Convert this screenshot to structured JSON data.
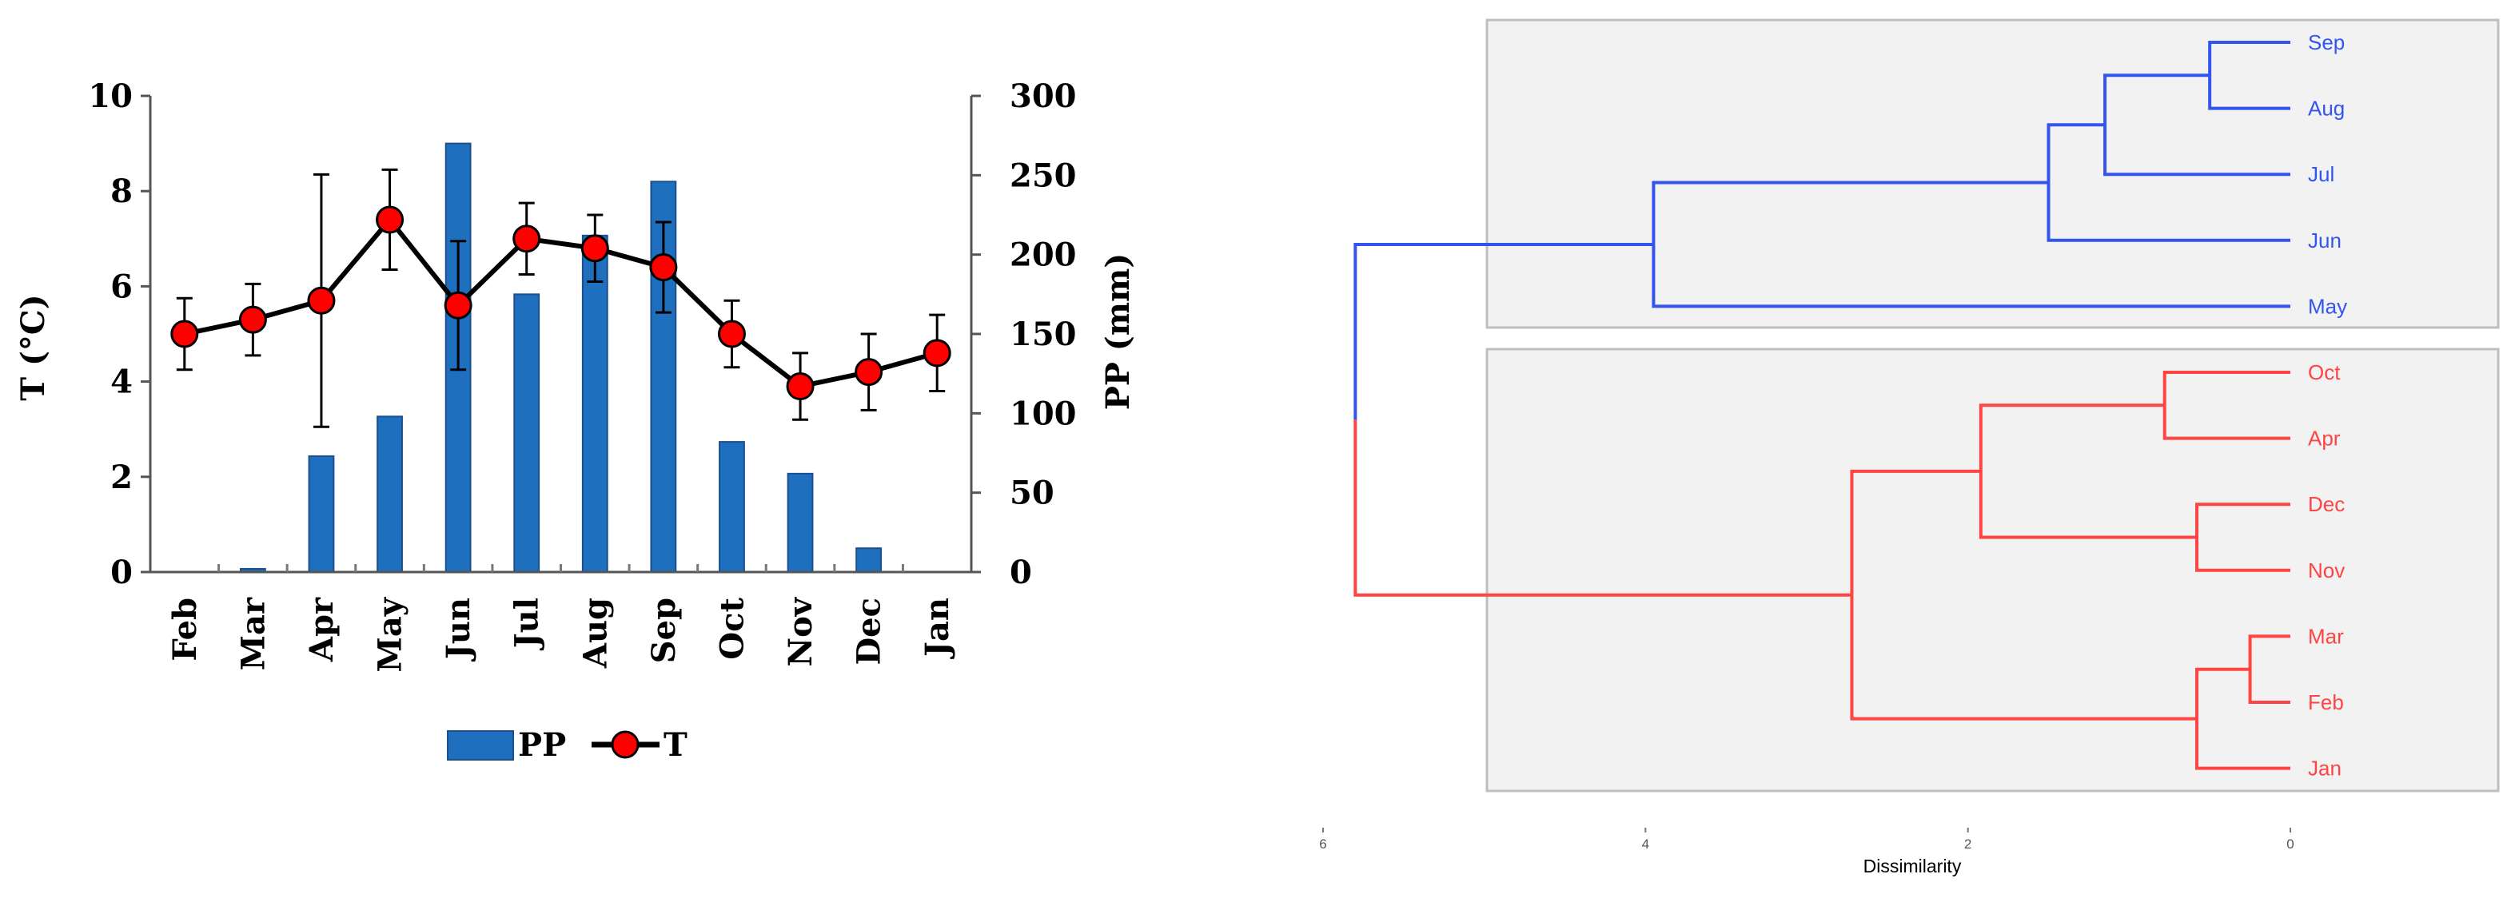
{
  "chart_data": [
    {
      "type": "bar+line",
      "categories": [
        "Feb",
        "Mar",
        "Apr",
        "May",
        "Jun",
        "Jul",
        "Aug",
        "Sep",
        "Oct",
        "Nov",
        "Dec",
        "Jan"
      ],
      "left_axis": {
        "label": "T (°C)",
        "range": [
          0,
          10
        ],
        "ticks": [
          "0",
          "2",
          "4",
          "6",
          "8",
          "10"
        ]
      },
      "right_axis": {
        "label": "PP (mm)",
        "range": [
          0,
          300
        ],
        "ticks": [
          "0",
          "50",
          "100",
          "150",
          "200",
          "250",
          "300"
        ]
      },
      "series": [
        {
          "name": "PP",
          "type": "bar",
          "axis": "right",
          "color": "#1f6fbf",
          "values": [
            0,
            2,
            73,
            98,
            270,
            175,
            212,
            246,
            82,
            62,
            15,
            0
          ]
        },
        {
          "name": "T",
          "type": "line",
          "axis": "left",
          "line_color": "#000000",
          "marker_color": "#ff0000",
          "values": [
            5.0,
            5.3,
            5.7,
            7.4,
            5.6,
            7.0,
            6.8,
            6.4,
            5.0,
            3.9,
            4.2,
            4.6
          ],
          "error": [
            0.75,
            0.75,
            2.65,
            1.05,
            1.35,
            0.75,
            0.7,
            0.95,
            0.7,
            0.7,
            0.8,
            0.8
          ]
        }
      ],
      "legend": {
        "placement": "bottom",
        "entries": [
          "PP",
          "T"
        ]
      },
      "grid": false
    },
    {
      "type": "dendrogram",
      "x_axis": {
        "label": "Dissimilarity",
        "range": [
          6,
          0
        ],
        "ticks": [
          "6",
          "4",
          "2",
          "0"
        ],
        "reversed": true
      },
      "leaves": [
        "Sep",
        "Aug",
        "Jul",
        "Jun",
        "May",
        "Oct",
        "Apr",
        "Dec",
        "Nov",
        "Mar",
        "Feb",
        "Jan"
      ],
      "clusters": [
        {
          "members": [
            "Sep",
            "Aug",
            "Jul",
            "Jun",
            "May"
          ],
          "color": "#3355ee"
        },
        {
          "members": [
            "Oct",
            "Apr",
            "Dec",
            "Nov",
            "Mar",
            "Feb",
            "Jan"
          ],
          "color": "#ff4444"
        }
      ],
      "merges": [
        {
          "left": 0,
          "right": 1,
          "height": 0.5
        },
        {
          "left": "n0",
          "right": 2,
          "height": 1.15
        },
        {
          "left": "n1",
          "right": 3,
          "height": 1.5
        },
        {
          "left": "n2",
          "right": 4,
          "height": 3.95
        },
        {
          "left": 5,
          "right": 6,
          "height": 0.78
        },
        {
          "left": 7,
          "right": 8,
          "height": 0.58
        },
        {
          "left": "n4",
          "right": "n5",
          "height": 1.92
        },
        {
          "left": 9,
          "right": 10,
          "height": 0.25
        },
        {
          "left": "n7",
          "right": 11,
          "height": 0.58
        },
        {
          "left": "n6",
          "right": "n8",
          "height": 2.72
        },
        {
          "left": "n3",
          "right": "n9",
          "height": 5.8
        }
      ],
      "cluster_boxes": true,
      "grid": false
    }
  ]
}
